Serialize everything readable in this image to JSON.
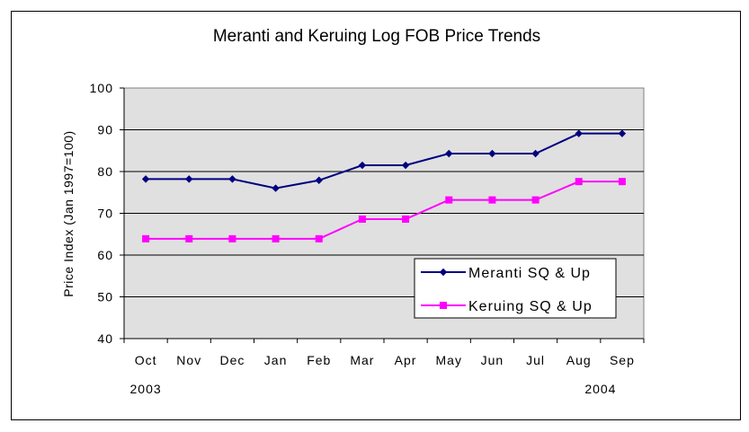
{
  "chart_data": {
    "type": "line",
    "title": "Meranti and Keruing Log FOB Price Trends",
    "ylabel": "Price Index (Jan 1997=100)",
    "xlabel": "",
    "categories": [
      "Oct",
      "Nov",
      "Dec",
      "Jan",
      "Feb",
      "Mar",
      "Apr",
      "May",
      "Jun",
      "Jul",
      "Aug",
      "Sep"
    ],
    "year_labels": [
      "2003",
      "2004"
    ],
    "ylim": [
      40,
      100
    ],
    "yticks": [
      "40",
      "50",
      "60",
      "70",
      "80",
      "90",
      "100"
    ],
    "grid": true,
    "plot_background": "#e0e0e0",
    "legend_position": "bottom-right",
    "series": [
      {
        "name": "Meranti SQ & Up",
        "color": "#000080",
        "marker": "diamond",
        "values": [
          78.2,
          78.2,
          78.2,
          76.0,
          77.9,
          81.5,
          81.5,
          84.3,
          84.3,
          84.3,
          89.1,
          89.1
        ]
      },
      {
        "name": "Keruing SQ & Up",
        "color": "#ff00ff",
        "marker": "square",
        "values": [
          63.9,
          63.9,
          63.9,
          63.9,
          63.9,
          68.6,
          68.6,
          73.2,
          73.2,
          73.2,
          77.6,
          77.6
        ]
      }
    ]
  }
}
